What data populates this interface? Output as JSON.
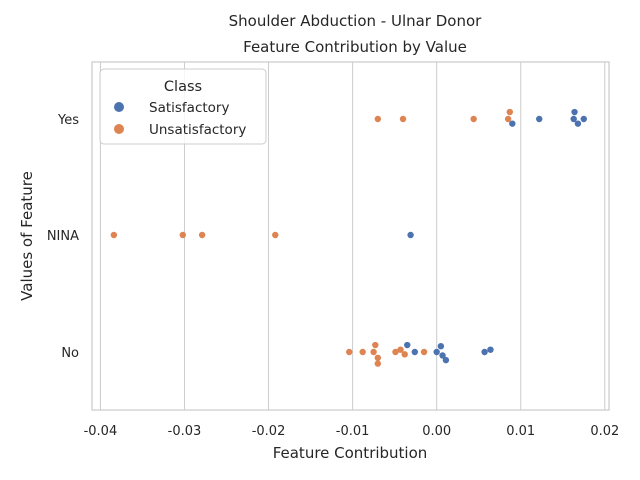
{
  "chart_data": {
    "type": "scatter",
    "title_line1": "Shoulder Abduction - Ulnar Donor",
    "title_line2": "Feature Contribution by Value",
    "xlabel": "Feature Contribution",
    "ylabel": "Values of Feature",
    "xlim": [
      -0.041,
      0.0205
    ],
    "x_ticks": [
      "-0.04",
      "-0.03",
      "-0.02",
      "-0.01",
      "0.00",
      "0.01",
      "0.02"
    ],
    "x_tick_values": [
      -0.04,
      -0.03,
      -0.02,
      -0.01,
      0.0,
      0.01,
      0.02
    ],
    "categories": [
      "Yes",
      "NINA",
      "No"
    ],
    "grid": "x",
    "legend_placement": "top-left",
    "legend": {
      "title": "Class",
      "entries": [
        "Satisfactory",
        "Unsatisfactory"
      ]
    },
    "series": [
      {
        "name": "Satisfactory",
        "color": "#4c72b0",
        "points": [
          {
            "category": "Yes",
            "x": 0.0164,
            "jitter": -0.06
          },
          {
            "category": "Yes",
            "x": 0.0122,
            "jitter": 0.0
          },
          {
            "category": "Yes",
            "x": 0.0163,
            "jitter": 0.0
          },
          {
            "category": "Yes",
            "x": 0.0175,
            "jitter": 0.0
          },
          {
            "category": "Yes",
            "x": 0.0168,
            "jitter": 0.04
          },
          {
            "category": "Yes",
            "x": 0.009,
            "jitter": 0.04
          },
          {
            "category": "NINA",
            "x": -0.0031,
            "jitter": 0.0
          },
          {
            "category": "No",
            "x": -0.0035,
            "jitter": -0.06
          },
          {
            "category": "No",
            "x": 0.0005,
            "jitter": -0.05
          },
          {
            "category": "No",
            "x": 0.0064,
            "jitter": -0.02
          },
          {
            "category": "No",
            "x": 0.0057,
            "jitter": 0.0
          },
          {
            "category": "No",
            "x": -0.0026,
            "jitter": 0.0
          },
          {
            "category": "No",
            "x": 0.0,
            "jitter": 0.0
          },
          {
            "category": "No",
            "x": 0.0007,
            "jitter": 0.03
          },
          {
            "category": "No",
            "x": 0.0011,
            "jitter": 0.07
          }
        ]
      },
      {
        "name": "Unsatisfactory",
        "color": "#dd8452",
        "points": [
          {
            "category": "Yes",
            "x": 0.0087,
            "jitter": -0.06
          },
          {
            "category": "Yes",
            "x": -0.007,
            "jitter": 0.0
          },
          {
            "category": "Yes",
            "x": -0.004,
            "jitter": 0.0
          },
          {
            "category": "Yes",
            "x": 0.0044,
            "jitter": 0.0
          },
          {
            "category": "Yes",
            "x": 0.0085,
            "jitter": 0.0
          },
          {
            "category": "NINA",
            "x": -0.0384,
            "jitter": 0.0
          },
          {
            "category": "NINA",
            "x": -0.0302,
            "jitter": 0.0
          },
          {
            "category": "NINA",
            "x": -0.0279,
            "jitter": 0.0
          },
          {
            "category": "NINA",
            "x": -0.0192,
            "jitter": 0.0
          },
          {
            "category": "No",
            "x": -0.0073,
            "jitter": -0.06
          },
          {
            "category": "No",
            "x": -0.0043,
            "jitter": -0.02
          },
          {
            "category": "No",
            "x": -0.0104,
            "jitter": 0.0
          },
          {
            "category": "No",
            "x": -0.0088,
            "jitter": 0.0
          },
          {
            "category": "No",
            "x": -0.0075,
            "jitter": 0.0
          },
          {
            "category": "No",
            "x": -0.0049,
            "jitter": 0.0
          },
          {
            "category": "No",
            "x": -0.0015,
            "jitter": 0.0
          },
          {
            "category": "No",
            "x": -0.0038,
            "jitter": 0.02
          },
          {
            "category": "No",
            "x": -0.007,
            "jitter": 0.05
          },
          {
            "category": "No",
            "x": -0.007,
            "jitter": 0.1
          }
        ]
      }
    ]
  }
}
